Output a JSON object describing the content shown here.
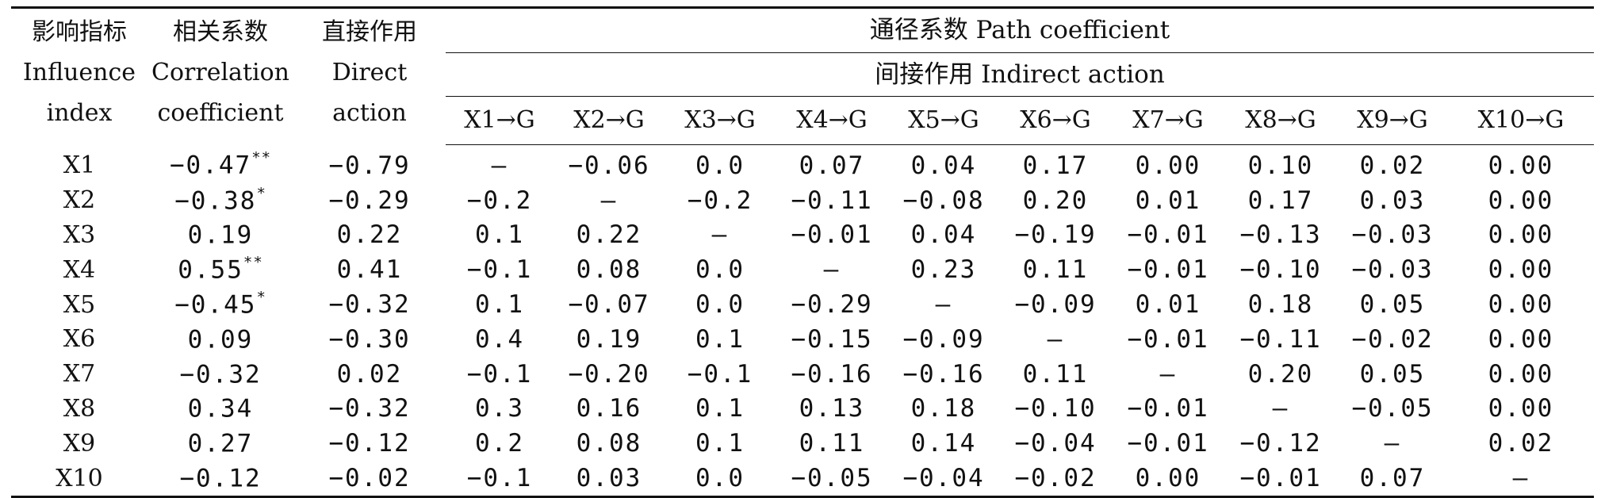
{
  "headers": {
    "index": [
      "影响指标",
      "Influence",
      "index"
    ],
    "correlation": [
      "相关系数",
      "Correlation",
      "coefficient"
    ],
    "direct": [
      "直接作用",
      "Direct",
      "action"
    ],
    "path": "通径系数 Path coefficient",
    "indirect": "间接作用 Indirect action",
    "columns": [
      "X1→G",
      "X2→G",
      "X3→G",
      "X4→G",
      "X5→G",
      "X6→G",
      "X7→G",
      "X8→G",
      "X9→G",
      "X10→G"
    ]
  },
  "rows": [
    {
      "index": "X1",
      "corr": "−0.47",
      "sig": "**",
      "direct": "−0.79",
      "indirect": [
        "—",
        "−0.06",
        "0.0",
        "0.07",
        "0.04",
        "0.17",
        "0.00",
        "0.10",
        "0.02",
        "0.00"
      ]
    },
    {
      "index": "X2",
      "corr": "−0.38",
      "sig": "*",
      "direct": "−0.29",
      "indirect": [
        "−0.2",
        "—",
        "−0.2",
        "−0.11",
        "−0.08",
        "0.20",
        "0.01",
        "0.17",
        "0.03",
        "0.00"
      ]
    },
    {
      "index": "X3",
      "corr": "0.19",
      "sig": "",
      "direct": "0.22",
      "indirect": [
        "0.1",
        "0.22",
        "—",
        "−0.01",
        "0.04",
        "−0.19",
        "−0.01",
        "−0.13",
        "−0.03",
        "0.00"
      ]
    },
    {
      "index": "X4",
      "corr": "0.55",
      "sig": "**",
      "direct": "0.41",
      "indirect": [
        "−0.1",
        "0.08",
        "0.0",
        "—",
        "0.23",
        "0.11",
        "−0.01",
        "−0.10",
        "−0.03",
        "0.00"
      ]
    },
    {
      "index": "X5",
      "corr": "−0.45",
      "sig": "*",
      "direct": "−0.32",
      "indirect": [
        "0.1",
        "−0.07",
        "0.0",
        "−0.29",
        "—",
        "−0.09",
        "0.01",
        "0.18",
        "0.05",
        "0.00"
      ]
    },
    {
      "index": "X6",
      "corr": "0.09",
      "sig": "",
      "direct": "−0.30",
      "indirect": [
        "0.4",
        "0.19",
        "0.1",
        "−0.15",
        "−0.09",
        "—",
        "−0.01",
        "−0.11",
        "−0.02",
        "0.00"
      ]
    },
    {
      "index": "X7",
      "corr": "−0.32",
      "sig": "",
      "direct": "0.02",
      "indirect": [
        "−0.1",
        "−0.20",
        "−0.1",
        "−0.16",
        "−0.16",
        "0.11",
        "—",
        "0.20",
        "0.05",
        "0.00"
      ]
    },
    {
      "index": "X8",
      "corr": "0.34",
      "sig": "",
      "direct": "−0.32",
      "indirect": [
        "0.3",
        "0.16",
        "0.1",
        "0.13",
        "0.18",
        "−0.10",
        "−0.01",
        "—",
        "−0.05",
        "0.00"
      ]
    },
    {
      "index": "X9",
      "corr": "0.27",
      "sig": "",
      "direct": "−0.12",
      "indirect": [
        "0.2",
        "0.08",
        "0.1",
        "0.11",
        "0.14",
        "−0.04",
        "−0.01",
        "−0.12",
        "—",
        "0.02"
      ]
    },
    {
      "index": "X10",
      "corr": "−0.12",
      "sig": "",
      "direct": "−0.02",
      "indirect": [
        "−0.1",
        "0.03",
        "0.0",
        "−0.05",
        "−0.04",
        "−0.02",
        "0.00",
        "−0.01",
        "0.07",
        "—"
      ]
    }
  ]
}
